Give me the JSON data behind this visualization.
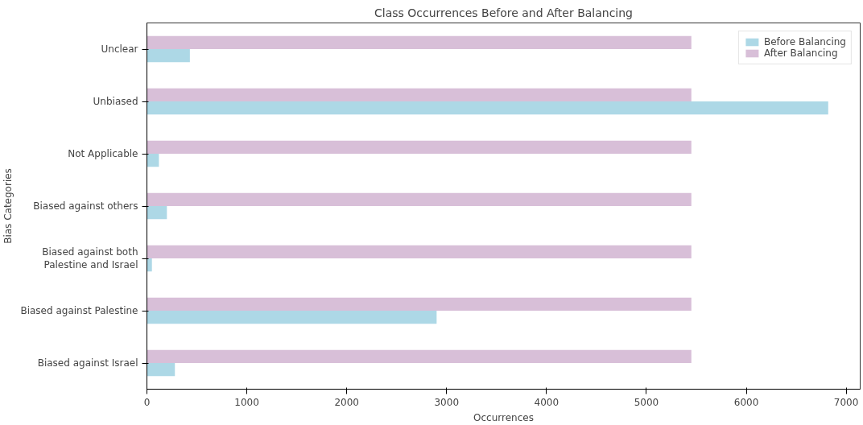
{
  "chart_data": {
    "type": "bar",
    "orientation": "horizontal",
    "title": "Class Occurrences Before and After Balancing",
    "xlabel": "Occurrences",
    "ylabel": "Bias Categories",
    "categories": [
      "Unclear",
      "Unbiased",
      "Not Applicable",
      "Biased against others",
      "Biased against both\nPalestine and Israel",
      "Biased against Palestine",
      "Biased against Israel"
    ],
    "series": [
      {
        "name": "Before Balancing",
        "color": "#add8e6",
        "values": [
          430,
          6820,
          120,
          200,
          50,
          2900,
          280
        ]
      },
      {
        "name": "After Balancing",
        "color": "#d8bfd8",
        "values": [
          5450,
          5450,
          5450,
          5450,
          5450,
          5450,
          5450
        ]
      }
    ],
    "xlim": [
      0,
      7140
    ],
    "xticks": [
      0,
      1000,
      2000,
      3000,
      4000,
      5000,
      6000,
      7000
    ],
    "grid": false,
    "legend": "top right"
  }
}
